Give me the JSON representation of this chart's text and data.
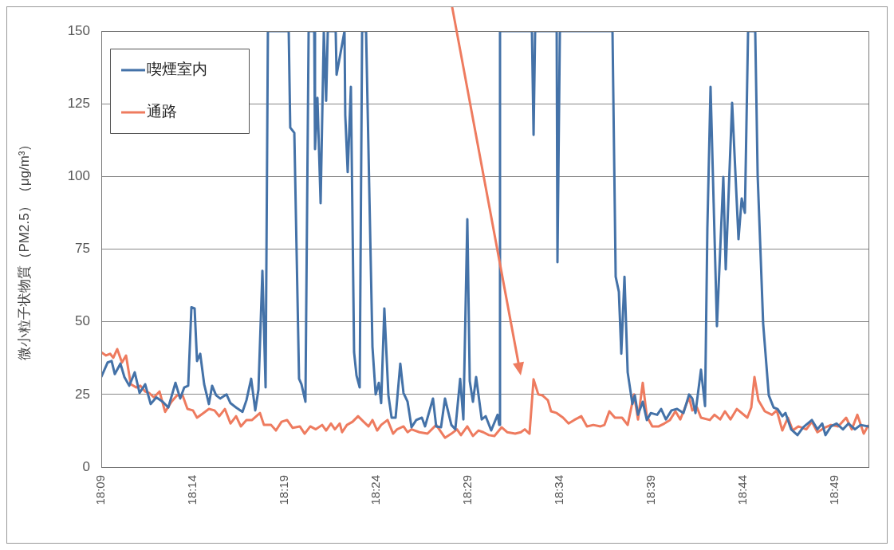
{
  "chart_data": {
    "type": "line",
    "ylabel": "微小粒子状物質（PM2.5）（μg/m³）",
    "xlim": [
      18.15,
      18.8471
    ],
    "xticks": [
      {
        "value": 18.15,
        "label": "18:09"
      },
      {
        "value": 18.23333,
        "label": "18:14"
      },
      {
        "value": 18.31667,
        "label": "18:19"
      },
      {
        "value": 18.4,
        "label": "18:24"
      },
      {
        "value": 18.48333,
        "label": "18:29"
      },
      {
        "value": 18.56667,
        "label": "18:34"
      },
      {
        "value": 18.65,
        "label": "18:39"
      },
      {
        "value": 18.73333,
        "label": "18:44"
      },
      {
        "value": 18.81667,
        "label": "18:49"
      }
    ],
    "ylim": [
      0,
      150
    ],
    "yticks": [
      0,
      25,
      50,
      75,
      100,
      125,
      150
    ],
    "grid": "y",
    "legend": "top left",
    "line_style": "solid",
    "series": [
      {
        "name": "喫煙室内",
        "color": "#4472a8",
        "x": [
          18.15,
          18.1558,
          18.1594,
          18.1623,
          18.1674,
          18.171,
          18.1754,
          18.1804,
          18.1848,
          18.1899,
          18.1949,
          18.2,
          18.2058,
          18.2109,
          18.2174,
          18.2217,
          18.2254,
          18.229,
          18.2319,
          18.2348,
          18.237,
          18.2399,
          18.2435,
          18.2478,
          18.2507,
          18.2543,
          18.258,
          18.2638,
          18.2674,
          18.2725,
          18.2783,
          18.2819,
          18.2862,
          18.2899,
          18.2928,
          18.2964,
          18.2993,
          18.3014,
          18.3203,
          18.3217,
          18.3254,
          18.3297,
          18.3319,
          18.3355,
          18.3384,
          18.3435,
          18.3442,
          18.3464,
          18.3493,
          18.3522,
          18.3543,
          18.3558,
          18.363,
          18.3638,
          18.371,
          18.3717,
          18.3739,
          18.3768,
          18.3797,
          18.3819,
          18.3848,
          18.387,
          18.3906,
          18.3964,
          18.3993,
          18.4022,
          18.4043,
          18.4072,
          18.4109,
          18.4138,
          18.4174,
          18.4217,
          18.4246,
          18.4283,
          18.4319,
          18.4362,
          18.4413,
          18.4442,
          18.4514,
          18.4543,
          18.4587,
          18.4623,
          18.4681,
          18.4717,
          18.4761,
          18.479,
          18.4826,
          18.4848,
          18.4877,
          18.4906,
          18.4957,
          18.4993,
          18.5043,
          18.5101,
          18.5116,
          18.5123,
          18.5413,
          18.5428,
          18.5442,
          18.5638,
          18.5645,
          18.5667,
          18.6145,
          18.6174,
          18.6203,
          18.6225,
          18.6254,
          18.6283,
          18.6326,
          18.6348,
          18.6377,
          18.642,
          18.6457,
          18.6493,
          18.6551,
          18.6587,
          18.663,
          18.6681,
          18.6732,
          18.679,
          18.6841,
          18.687,
          18.6899,
          18.6949,
          18.6986,
          18.7007,
          18.7036,
          18.7094,
          18.7152,
          18.7174,
          18.7232,
          18.729,
          18.7319,
          18.7348,
          18.7377,
          18.7442,
          18.7464,
          18.7514,
          18.7565,
          18.7609,
          18.7645,
          18.7688,
          18.7717,
          18.7768,
          18.7826,
          18.7877,
          18.7957,
          18.8007,
          18.8051,
          18.808,
          18.813,
          18.8181,
          18.8239,
          18.829,
          18.8348,
          18.8399,
          18.8471
        ],
        "values": [
          31,
          36,
          36.5,
          32,
          35.6,
          31,
          28,
          32.6,
          25.5,
          28.5,
          21.7,
          24,
          22.5,
          20.5,
          29,
          23.6,
          27.4,
          28,
          55,
          54.6,
          36.5,
          39,
          28.5,
          21.7,
          28,
          24.7,
          23.6,
          25,
          22,
          20.5,
          19,
          23,
          30.4,
          19.5,
          26.6,
          67.5,
          27.4,
          150,
          150,
          116.8,
          115,
          30.4,
          28.5,
          22.5,
          150,
          150,
          109.4,
          127,
          90.8,
          150,
          126,
          150,
          150,
          135,
          150,
          121,
          101.5,
          130.8,
          39.5,
          31.5,
          27.4,
          150,
          150,
          41.4,
          25,
          29,
          22,
          54.6,
          24.7,
          17,
          17,
          35.6,
          25.5,
          22.5,
          13.7,
          16.2,
          17,
          14,
          23.6,
          14,
          13.7,
          23.6,
          14.5,
          13,
          30.4,
          16.4,
          85.3,
          29.6,
          22.5,
          31,
          16.4,
          17.5,
          12.6,
          18,
          14.5,
          150,
          150,
          114.3,
          150,
          150,
          70.5,
          150,
          150,
          65.5,
          60.3,
          39,
          65.5,
          32.6,
          21.7,
          24.7,
          18,
          22.5,
          16.2,
          18.6,
          18,
          20,
          16.4,
          19.5,
          20,
          18.6,
          25,
          23.6,
          18.6,
          33.5,
          21,
          82,
          130.8,
          48.5,
          99.8,
          68,
          125.3,
          78.4,
          92.4,
          87.5,
          150,
          150,
          100.4,
          49.4,
          24.7,
          20.5,
          20,
          17.5,
          18.6,
          13,
          11,
          13.7,
          16.2,
          13,
          15,
          11,
          14,
          15,
          13,
          15,
          13,
          14.5,
          14
        ]
      },
      {
        "name": "通路",
        "color": "#ee7b5f",
        "x": [
          18.15,
          18.1543,
          18.158,
          18.1609,
          18.1645,
          18.1688,
          18.1725,
          18.1768,
          18.1819,
          18.1855,
          18.1899,
          18.1935,
          18.1978,
          18.2029,
          18.208,
          18.2138,
          18.2188,
          18.2239,
          18.2283,
          18.2333,
          18.237,
          18.2428,
          18.2478,
          18.2529,
          18.2572,
          18.2623,
          18.2674,
          18.2725,
          18.2768,
          18.2819,
          18.287,
          18.2942,
          18.2978,
          18.3043,
          18.3087,
          18.3138,
          18.3188,
          18.3239,
          18.3304,
          18.3348,
          18.3399,
          18.3449,
          18.3507,
          18.3543,
          18.3587,
          18.3623,
          18.3667,
          18.3688,
          18.3732,
          18.3783,
          18.3833,
          18.3884,
          18.3928,
          18.3964,
          18.4007,
          18.4043,
          18.4101,
          18.4152,
          18.4188,
          18.4246,
          18.4283,
          18.4319,
          18.4391,
          18.4464,
          18.4543,
          18.4623,
          18.4681,
          18.4732,
          18.4768,
          18.4826,
          18.4877,
          18.4928,
          18.4971,
          18.5022,
          18.5072,
          18.5138,
          18.5188,
          18.5261,
          18.5312,
          18.5348,
          18.5391,
          18.5428,
          18.5471,
          18.5507,
          18.5558,
          18.5587,
          18.5638,
          18.5696,
          18.5746,
          18.5797,
          18.5862,
          18.5913,
          18.5971,
          18.6036,
          18.6072,
          18.6116,
          18.6167,
          18.6232,
          18.6283,
          18.6341,
          18.6377,
          18.642,
          18.6457,
          18.6507,
          18.6565,
          18.6616,
          18.6667,
          18.6717,
          18.6761,
          18.6841,
          18.687,
          18.6913,
          18.6949,
          18.7029,
          18.7072,
          18.7123,
          18.7167,
          18.7217,
          18.7275,
          18.737,
          18.7406,
          18.7435,
          18.7471,
          18.7529,
          18.7594,
          18.7638,
          18.7688,
          18.7739,
          18.7783,
          18.7833,
          18.7906,
          18.7957,
          18.8007,
          18.808,
          18.813,
          18.8196,
          18.8268,
          18.8319,
          18.837,
          18.8428,
          18.8471
        ],
        "values": [
          39.5,
          38.4,
          39,
          37.6,
          40.6,
          36,
          38.4,
          28.5,
          27.4,
          28,
          26,
          25.5,
          24,
          26,
          19,
          22.5,
          24.7,
          24.7,
          20,
          19.5,
          17,
          18.6,
          20,
          19.5,
          17.5,
          20,
          15,
          17.5,
          14,
          16.2,
          16.2,
          18.6,
          14.5,
          14.5,
          12.6,
          15.6,
          16.2,
          13.5,
          14,
          11.5,
          14,
          13,
          14.5,
          12.6,
          15,
          13,
          15,
          12,
          14.5,
          15.6,
          17.5,
          15.6,
          14,
          16.2,
          12.6,
          14.5,
          16.2,
          11.5,
          13,
          14,
          12,
          13,
          12,
          11.5,
          14.5,
          10.1,
          11.5,
          13,
          11,
          14,
          10.7,
          12.6,
          12,
          11,
          10.7,
          13.7,
          12,
          11.5,
          12,
          13,
          11.5,
          30.2,
          25,
          24.7,
          23,
          19.2,
          18.6,
          17,
          15,
          16.2,
          17.5,
          14,
          14.5,
          14,
          14.5,
          19.2,
          17,
          17,
          14.5,
          25,
          16.4,
          29,
          17.5,
          14,
          14,
          15,
          16.2,
          19.2,
          16.4,
          24,
          19.5,
          20.5,
          17,
          16.2,
          18,
          16.4,
          19.2,
          16.4,
          20,
          17,
          20.5,
          31,
          23,
          19.2,
          18,
          19.5,
          12.6,
          17,
          12.6,
          14,
          13,
          15.6,
          12,
          13.7,
          14.5,
          14,
          17,
          13,
          18,
          11.5,
          14.5
        ]
      }
    ]
  }
}
